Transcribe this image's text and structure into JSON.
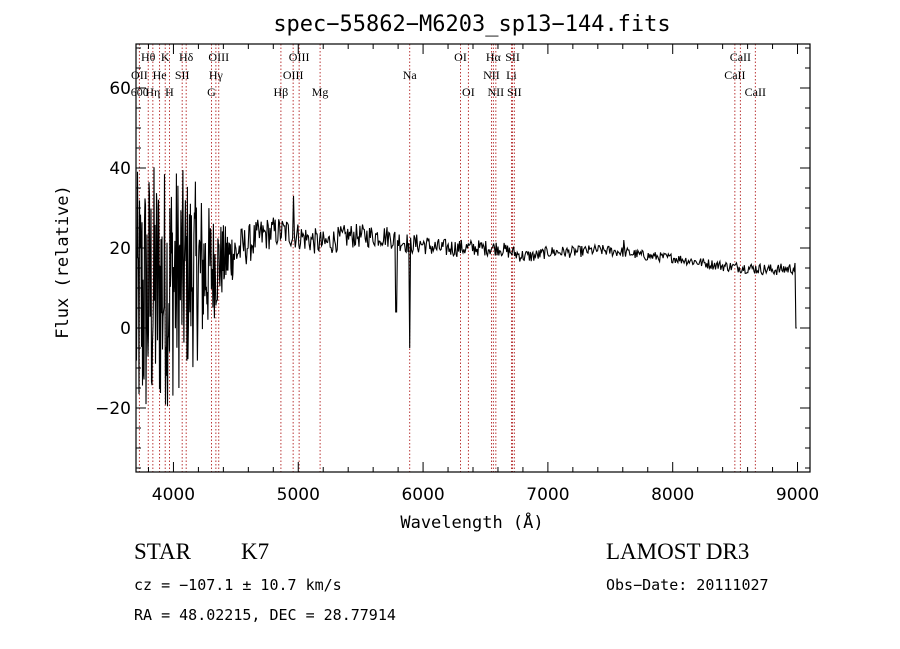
{
  "chart_data": {
    "type": "line",
    "title": "spec−55862−M6203_sp13−144.fits",
    "xlabel": "Wavelength (Å)",
    "ylabel": "Flux (relative)",
    "xlim": [
      3700,
      9100
    ],
    "ylim": [
      -36,
      71
    ],
    "x_ticks": [
      4000,
      5000,
      6000,
      7000,
      8000,
      9000
    ],
    "x_tick_labels": [
      "4000",
      "5000",
      "6000",
      "7000",
      "8000",
      "9000"
    ],
    "y_ticks": [
      -20,
      0,
      20,
      40,
      60
    ],
    "y_tick_labels": [
      "−20",
      "0",
      "20",
      "40",
      "60"
    ],
    "x_minor_step": 200,
    "y_minor_step": 5,
    "trend": [
      [
        3700,
        5
      ],
      [
        3800,
        8
      ],
      [
        3900,
        10
      ],
      [
        4000,
        12
      ],
      [
        4100,
        13
      ],
      [
        4200,
        14
      ],
      [
        4300,
        15
      ],
      [
        4400,
        17
      ],
      [
        4500,
        19
      ],
      [
        4600,
        21
      ],
      [
        4700,
        23
      ],
      [
        4800,
        24
      ],
      [
        4900,
        24
      ],
      [
        5000,
        23
      ],
      [
        5100,
        22
      ],
      [
        5200,
        21
      ],
      [
        5300,
        22
      ],
      [
        5400,
        23
      ],
      [
        5500,
        23
      ],
      [
        5600,
        23
      ],
      [
        5700,
        23
      ],
      [
        5800,
        22
      ],
      [
        5900,
        21
      ],
      [
        6000,
        21
      ],
      [
        6100,
        20
      ],
      [
        6200,
        20
      ],
      [
        6300,
        20
      ],
      [
        6400,
        20
      ],
      [
        6500,
        20
      ],
      [
        6600,
        20
      ],
      [
        6700,
        19
      ],
      [
        6800,
        18
      ],
      [
        6900,
        18
      ],
      [
        7000,
        19
      ],
      [
        7200,
        19
      ],
      [
        7400,
        19.5
      ],
      [
        7600,
        19
      ],
      [
        7800,
        18
      ],
      [
        8000,
        17.5
      ],
      [
        8200,
        16.5
      ],
      [
        8400,
        15.5
      ],
      [
        8600,
        15
      ],
      [
        8800,
        14.5
      ],
      [
        9000,
        15
      ]
    ],
    "noise_amplitude": [
      [
        3700,
        34
      ],
      [
        3800,
        34
      ],
      [
        3900,
        32
      ],
      [
        4000,
        30
      ],
      [
        4100,
        26
      ],
      [
        4200,
        22
      ],
      [
        4300,
        15
      ],
      [
        4400,
        9
      ],
      [
        4500,
        6
      ],
      [
        4600,
        5
      ],
      [
        4800,
        4
      ],
      [
        5000,
        3.5
      ],
      [
        5500,
        3
      ],
      [
        6000,
        2.5
      ],
      [
        6500,
        2
      ],
      [
        7000,
        1.5
      ],
      [
        8000,
        1.2
      ],
      [
        9000,
        1.5
      ]
    ],
    "features": [
      {
        "x": 5893,
        "y": -5
      },
      {
        "x": 5785,
        "y": 4
      },
      {
        "x": 4961,
        "y": 33
      },
      {
        "x": 7608,
        "y": 22
      },
      {
        "x": 8990,
        "y": 0
      }
    ],
    "lines": [
      {
        "label": "Hθ",
        "x": 3798,
        "row": 0
      },
      {
        "label": "OII",
        "x": 3727,
        "row": 1
      },
      {
        "label": "Hη",
        "x": 3835,
        "row": 2
      },
      {
        "label": "600",
        "x": 3730,
        "row": 2
      },
      {
        "label": "K",
        "x": 3934,
        "row": 0
      },
      {
        "label": "He",
        "x": 3889,
        "row": 1
      },
      {
        "label": "H",
        "x": 3968,
        "row": 2
      },
      {
        "label": "Hδ",
        "x": 4102,
        "row": 0
      },
      {
        "label": "SII",
        "x": 4070,
        "row": 1
      },
      {
        "label": "OIII",
        "x": 4363,
        "row": 0
      },
      {
        "label": "Hγ",
        "x": 4340,
        "row": 1
      },
      {
        "label": "G",
        "x": 4305,
        "row": 2
      },
      {
        "label": "Hβ",
        "x": 4861,
        "row": 2
      },
      {
        "label": "OIII",
        "x": 5007,
        "row": 0
      },
      {
        "label": "OIII",
        "x": 4959,
        "row": 1
      },
      {
        "label": "Mg",
        "x": 5175,
        "row": 2
      },
      {
        "label": "Na",
        "x": 5893,
        "row": 1
      },
      {
        "label": "OI",
        "x": 6300,
        "row": 0
      },
      {
        "label": "OI",
        "x": 6363,
        "row": 2
      },
      {
        "label": "Hα",
        "x": 6563,
        "row": 0
      },
      {
        "label": "SII",
        "x": 6717,
        "row": 0
      },
      {
        "label": "NII",
        "x": 6548,
        "row": 1
      },
      {
        "label": "Li",
        "x": 6708,
        "row": 1
      },
      {
        "label": "NII",
        "x": 6583,
        "row": 2
      },
      {
        "label": "SII",
        "x": 6731,
        "row": 2
      },
      {
        "label": "CaII",
        "x": 8542,
        "row": 0
      },
      {
        "label": "CaII",
        "x": 8498,
        "row": 1
      },
      {
        "label": "CaII",
        "x": 8662,
        "row": 2
      }
    ]
  },
  "info": {
    "object_class": "STAR",
    "subclass": "K7",
    "survey": "LAMOST DR3",
    "redshift_line": "cz = −107.1 ± 10.7 km/s",
    "obs_date_line": "Obs−Date: 20111027",
    "coords_line": "RA =  48.02215, DEC =  28.77914"
  },
  "colors": {
    "spectrum": "#000000",
    "line_marker": "#b22222",
    "frame": "#000000"
  }
}
